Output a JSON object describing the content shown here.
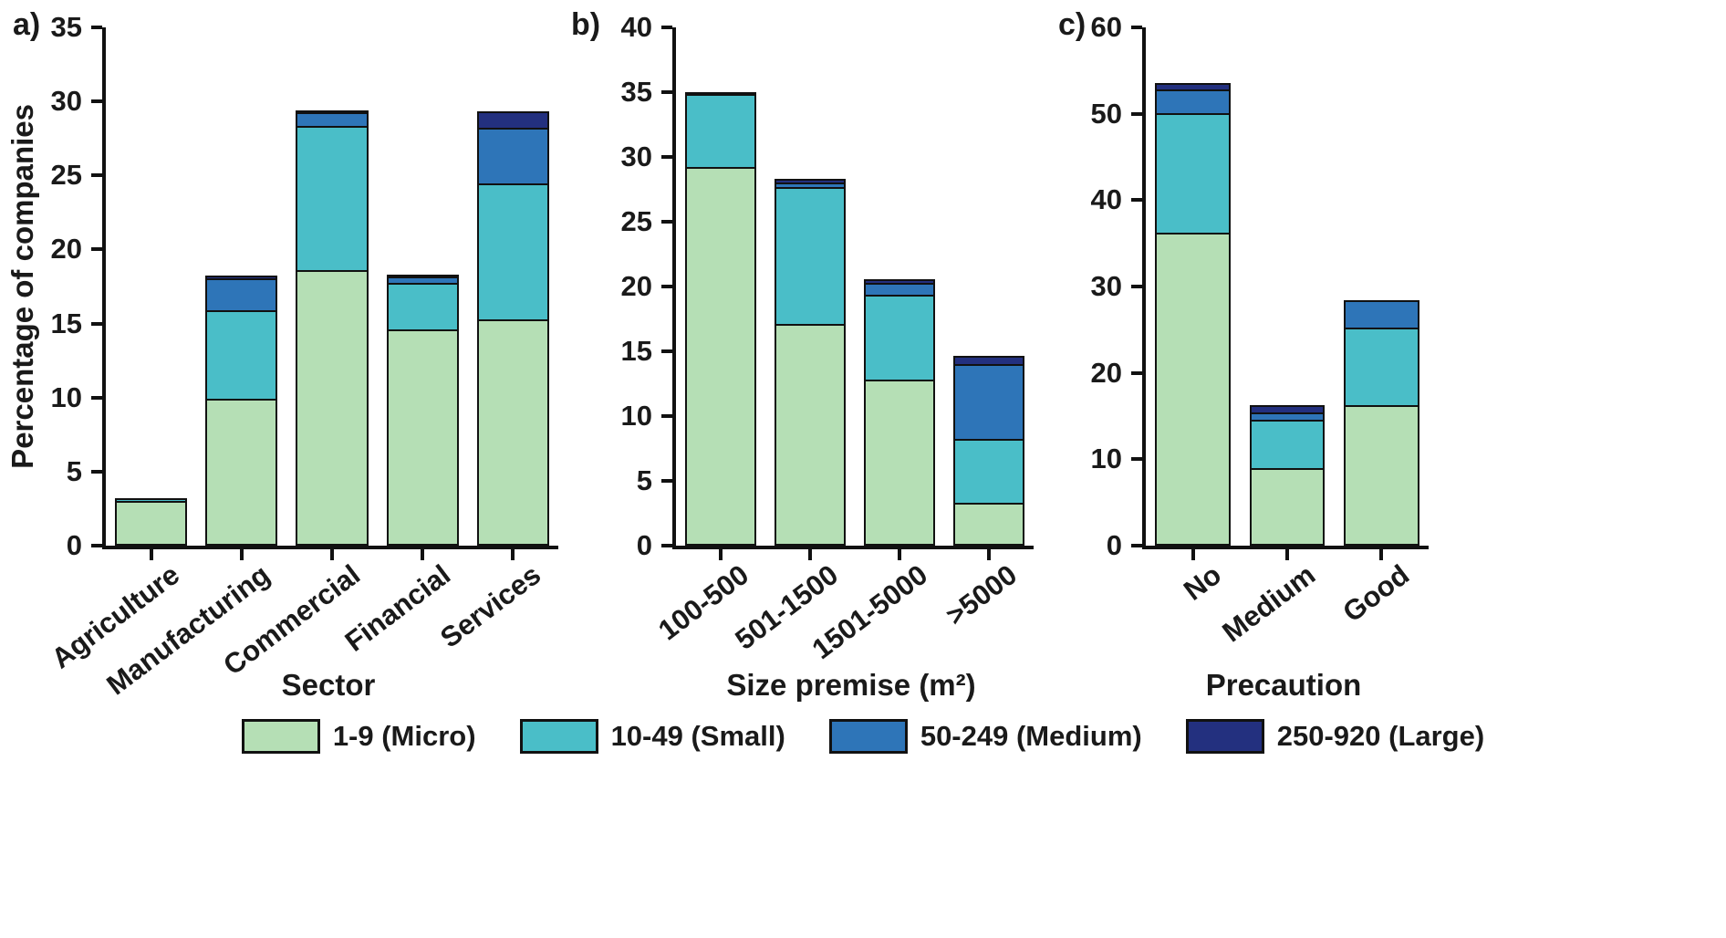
{
  "figure": {
    "background": "#ffffff",
    "axis_color": "#111111"
  },
  "legend": {
    "items": [
      {
        "label": "1-9 (Micro)",
        "color": "#b5dfb5"
      },
      {
        "label": "10-49 (Small)",
        "color": "#4abec8"
      },
      {
        "label": "50-249 (Medium)",
        "color": "#2e75b8"
      },
      {
        "label": "250-920 (Large)",
        "color": "#23307f"
      }
    ]
  },
  "chart_data": [
    {
      "type": "bar",
      "stacked": true,
      "panel_label": "a)",
      "title": "",
      "xlabel": "Sector",
      "ylabel": "Percentage of companies",
      "ylim": [
        0,
        35
      ],
      "yticks": [
        0,
        5,
        10,
        15,
        20,
        25,
        30,
        35
      ],
      "grid": false,
      "categories": [
        "Agriculture",
        "Manufacturing",
        "Commercial",
        "Financial",
        "Services"
      ],
      "series": [
        {
          "name": "1-9 (Micro)",
          "values": [
            3.0,
            9.9,
            18.6,
            14.6,
            15.3
          ]
        },
        {
          "name": "10-49 (Small)",
          "values": [
            0.3,
            6.1,
            9.9,
            3.3,
            9.3
          ]
        },
        {
          "name": "50-249 (Medium)",
          "values": [
            0,
            2.3,
            1.0,
            0.5,
            3.9
          ]
        },
        {
          "name": "250-920 (Large)",
          "values": [
            0,
            0.3,
            0.2,
            0.2,
            1.2
          ]
        }
      ]
    },
    {
      "type": "bar",
      "stacked": true,
      "panel_label": "b)",
      "title": "",
      "xlabel": "Size premise (m²)",
      "ylabel": "",
      "ylim": [
        0,
        40
      ],
      "yticks": [
        0,
        5,
        10,
        15,
        20,
        25,
        30,
        35,
        40
      ],
      "grid": false,
      "categories": [
        "100-500",
        "501-1500",
        "1501-5000",
        ">5000"
      ],
      "series": [
        {
          "name": "1-9 (Micro)",
          "values": [
            29.2,
            17.1,
            12.8,
            3.3
          ]
        },
        {
          "name": "10-49 (Small)",
          "values": [
            5.8,
            10.7,
            6.7,
            5.1
          ]
        },
        {
          "name": "50-249 (Medium)",
          "values": [
            0.3,
            0.5,
            1.1,
            5.9
          ]
        },
        {
          "name": "250-920 (Large)",
          "values": [
            0,
            0.4,
            0.4,
            0.8
          ]
        }
      ]
    },
    {
      "type": "bar",
      "stacked": true,
      "panel_label": "c)",
      "title": "",
      "xlabel": "Precaution",
      "ylabel": "",
      "ylim": [
        0,
        60
      ],
      "yticks": [
        0,
        10,
        20,
        30,
        40,
        50,
        60
      ],
      "grid": false,
      "categories": [
        "No",
        "Medium",
        "Good"
      ],
      "series": [
        {
          "name": "1-9 (Micro)",
          "values": [
            36.2,
            9.0,
            16.3
          ]
        },
        {
          "name": "10-49 (Small)",
          "values": [
            14.1,
            5.8,
            9.2
          ]
        },
        {
          "name": "50-249 (Medium)",
          "values": [
            2.9,
            1.1,
            3.3
          ]
        },
        {
          "name": "250-920 (Large)",
          "values": [
            1.0,
            1.0,
            0
          ]
        }
      ]
    }
  ]
}
